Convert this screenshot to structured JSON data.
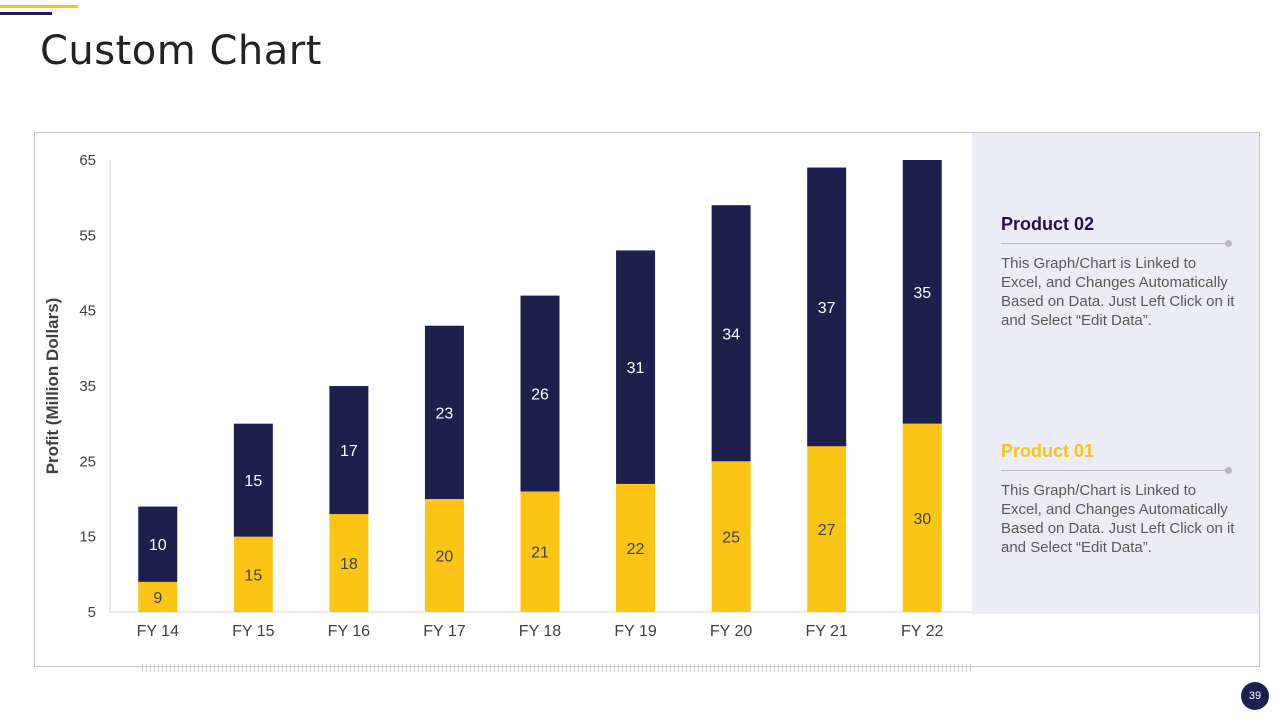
{
  "slide": {
    "title": "Custom Chart",
    "page_number": "39"
  },
  "panel": {
    "product02": {
      "heading": "Product 02",
      "text": "This Graph/Chart is Linked to Excel, and Changes Automatically Based on Data. Just Left Click on it and Select “Edit Data”."
    },
    "product01": {
      "heading": "Product 01",
      "text": "This Graph/Chart is Linked to Excel, and Changes Automatically Based on Data. Just Left Click on it and Select “Edit Data”."
    }
  },
  "colors": {
    "product01": "#fbc515",
    "product02": "#1f1f4d",
    "heading02": "#2b0f4c",
    "heading01": "#f5c518"
  },
  "chart_data": {
    "type": "bar",
    "stacked": true,
    "title": "",
    "xlabel": "",
    "ylabel": "Profit  (Million Dollars)",
    "ylim": [
      5,
      65
    ],
    "yticks": [
      5,
      15,
      25,
      35,
      45,
      55,
      65
    ],
    "categories": [
      "FY 14",
      "FY 15",
      "FY 16",
      "FY 17",
      "FY 18",
      "FY 19",
      "FY 20",
      "FY 21",
      "FY 22"
    ],
    "series": [
      {
        "name": "Product 01",
        "values": [
          9,
          15,
          18,
          20,
          21,
          22,
          25,
          27,
          30
        ]
      },
      {
        "name": "Product 02",
        "values": [
          10,
          15,
          17,
          23,
          26,
          31,
          34,
          37,
          35
        ]
      }
    ],
    "grid": false,
    "legend": "none"
  }
}
